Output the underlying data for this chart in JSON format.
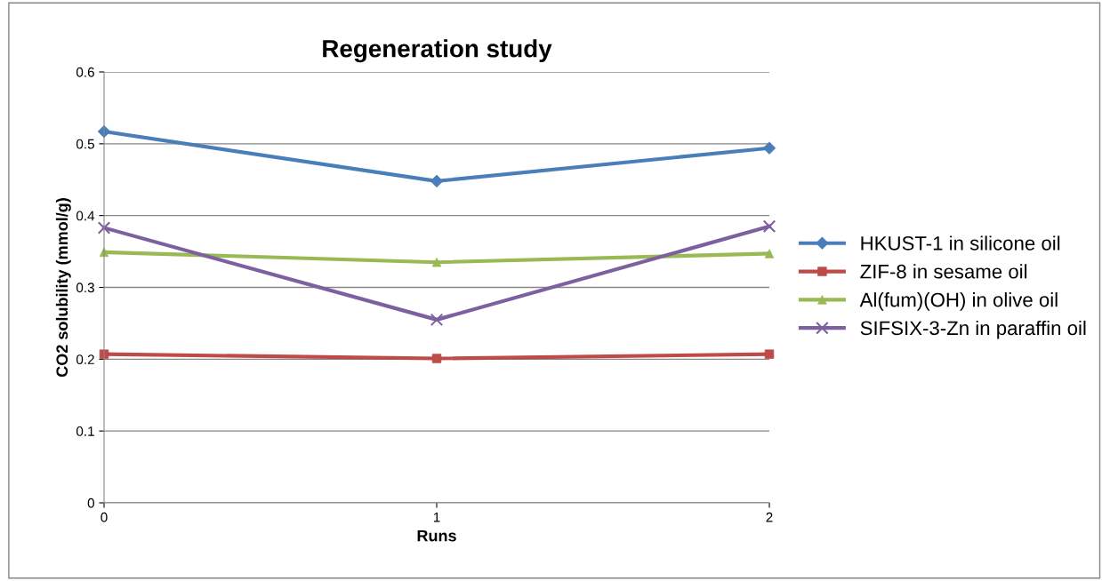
{
  "chart_data": {
    "type": "line",
    "title": "Regeneration study",
    "xlabel": "Runs",
    "ylabel": "CO2 solubility (mmol/g)",
    "x": [
      0,
      1,
      2
    ],
    "xlim": [
      0,
      2
    ],
    "xticks": [
      0,
      1,
      2
    ],
    "ylim": [
      0,
      0.6
    ],
    "yticks": [
      0,
      0.1,
      0.2,
      0.3,
      0.4,
      0.5,
      0.6
    ],
    "grid": "y",
    "legend": "right",
    "line_style": "solid",
    "series": [
      {
        "name": "HKUST-1 in silicone oil",
        "color": "#4a7ebb",
        "marker": "diamond",
        "values": [
          0.517,
          0.448,
          0.494
        ]
      },
      {
        "name": "ZIF-8 in sesame oil",
        "color": "#be4b48",
        "marker": "square",
        "values": [
          0.207,
          0.201,
          0.207
        ]
      },
      {
        "name": "Al(fum)(OH) in olive oil",
        "color": "#98b954",
        "marker": "triangle",
        "values": [
          0.349,
          0.335,
          0.347
        ]
      },
      {
        "name": "SIFSIX-3-Zn in paraffin oil",
        "color": "#7d60a0",
        "marker": "cross",
        "values": [
          0.383,
          0.255,
          0.385
        ]
      }
    ]
  }
}
